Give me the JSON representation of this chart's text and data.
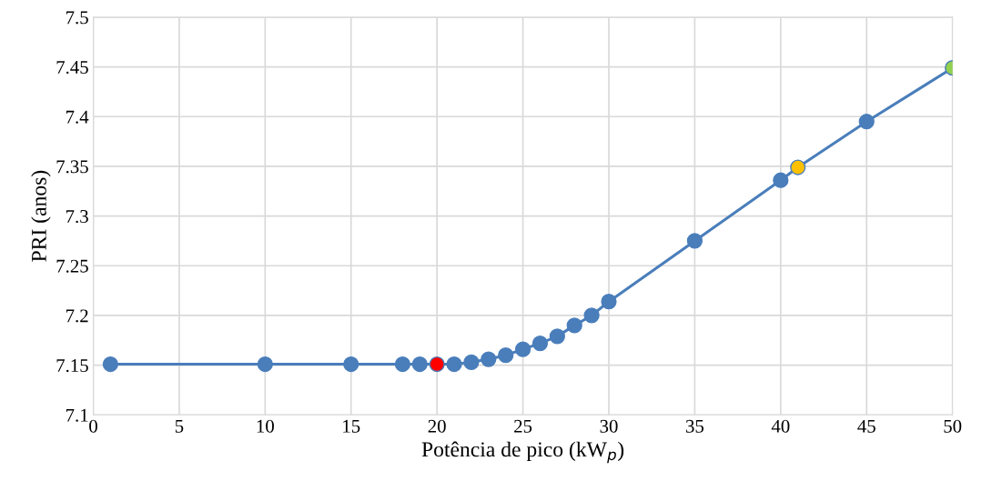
{
  "chart_data": {
    "type": "line",
    "xlabel": "Potência de pico (kW$_{p}$)",
    "ylabel": "PRI (anos)",
    "x": [
      1,
      10,
      15,
      18,
      19,
      20,
      21,
      22,
      23,
      24,
      25,
      26,
      27,
      28,
      29,
      30,
      35,
      40,
      41,
      45,
      50
    ],
    "series": [
      {
        "color": "#4a7ebb",
        "values": [
          7.151,
          7.151,
          7.151,
          7.151,
          7.151,
          7.151,
          7.151,
          7.153,
          7.156,
          7.16,
          7.166,
          7.172,
          7.179,
          7.19,
          7.2,
          7.214,
          7.275,
          7.336,
          7.349,
          7.395,
          7.449
        ],
        "colors": [
          "#4a7ebb",
          "#4a7ebb",
          "#4a7ebb",
          "#4a7ebb",
          "#4a7ebb",
          "#ff0000",
          "#4a7ebb",
          "#4a7ebb",
          "#4a7ebb",
          "#4a7ebb",
          "#4a7ebb",
          "#4a7ebb",
          "#4a7ebb",
          "#4a7ebb",
          "#4a7ebb",
          "#4a7ebb",
          "#4a7ebb",
          "#4a7ebb",
          "#ffc000",
          "#4a7ebb",
          "#92d050"
        ]
      }
    ],
    "xlim": [
      0,
      50
    ],
    "xticks": [
      0,
      5,
      10,
      15,
      20,
      25,
      30,
      35,
      40,
      45,
      50
    ],
    "ylim": [
      7.1,
      7.5
    ],
    "yticks": [
      7.1,
      7.15,
      7.2,
      7.25,
      7.3,
      7.35,
      7.4,
      7.45,
      7.5
    ],
    "grid": true,
    "marker": "circle",
    "line_style": "solid"
  }
}
